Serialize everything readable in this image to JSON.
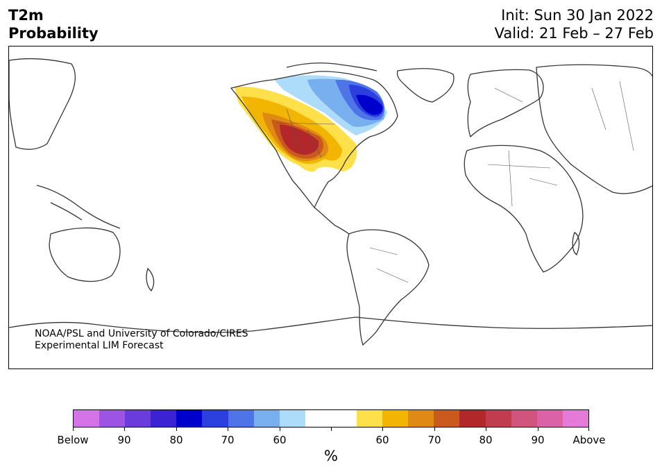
{
  "header": {
    "title_line1": "T2m",
    "title_line2": "Probability",
    "init": "Init: Sun 30 Jan 2022",
    "valid": "Valid: 21 Feb – 27 Feb"
  },
  "map": {
    "credit_line1": "NOAA/PSL and University of Colorado/CIRES",
    "credit_line2": "Experimental LIM Forecast",
    "coastline_color": "#333333"
  },
  "colorbar": {
    "colors": [
      "#d473e8",
      "#9c55e3",
      "#6a3cdb",
      "#3b22d3",
      "#0000cc",
      "#2a3fdd",
      "#4f74e8",
      "#78afef",
      "#acdcf9",
      "#ffffff",
      "#ffffff",
      "#fee04a",
      "#f2b502",
      "#df8a14",
      "#c9591c",
      "#b2272a",
      "#c23c4f",
      "#d0547e",
      "#dc62a8",
      "#e67ad8"
    ],
    "tick_labels": [
      "Below",
      "90",
      "80",
      "70",
      "60",
      "",
      "60",
      "70",
      "80",
      "90",
      "Above"
    ],
    "unit": "%"
  },
  "legend_colors": {
    "above_60": "#fee04a",
    "above_70": "#f2b502",
    "above_80": "#df8a14",
    "above_90": "#c9591c",
    "above_max": "#b2272a",
    "below_60": "#acdcf9",
    "below_70": "#78afef",
    "below_80": "#4f74e8",
    "below_90": "#2a3fdd",
    "below_max": "#0000cc"
  }
}
